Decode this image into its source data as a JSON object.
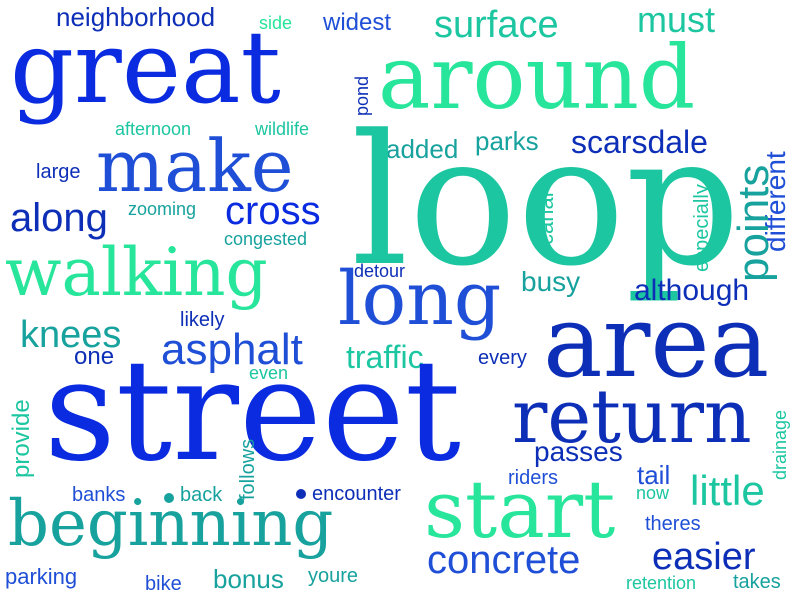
{
  "palette": {
    "blue": "#0a2be0",
    "royal": "#1f4fd6",
    "teal": "#17a29e",
    "sea": "#1cc6a0",
    "mint": "#27e59a",
    "navy": "#0d2fb7"
  },
  "words": {
    "neighborhood": "neighborhood",
    "side": "side",
    "widest": "widest",
    "surface": "surface",
    "must": "must",
    "great": "great",
    "around": "around",
    "pond": "pond",
    "afternoon": "afternoon",
    "wildlife": "wildlife",
    "added": "added",
    "parks": "parks",
    "scarsdale": "scarsdale",
    "large": "large",
    "make": "make",
    "loop": "loop",
    "especially": "especially",
    "different": "different",
    "along": "along",
    "zooming": "zooming",
    "cross": "cross",
    "canal": "canal",
    "points": "points",
    "congested": "congested",
    "walking": "walking",
    "detour": "detour",
    "busy": "busy",
    "although": "although",
    "long": "long",
    "likely": "likely",
    "knees": "knees",
    "asphalt": "asphalt",
    "area": "area",
    "one": "one",
    "traffic": "traffic",
    "every": "every",
    "even": "even",
    "provide": "provide",
    "street": "street",
    "return": "return",
    "follows": "follows",
    "passes": "passes",
    "drainage": "drainage",
    "tail": "tail",
    "riders": "riders",
    "banks": "banks",
    "back": "back",
    "encounter": "encounter",
    "little": "little",
    "now": "now",
    "beginning": "beginning",
    "start": "start",
    "theres": "theres",
    "easier": "easier",
    "concrete": "concrete",
    "parking": "parking",
    "bike": "bike",
    "bonus": "bonus",
    "youre": "youre",
    "retention": "retention",
    "takes": "takes"
  }
}
